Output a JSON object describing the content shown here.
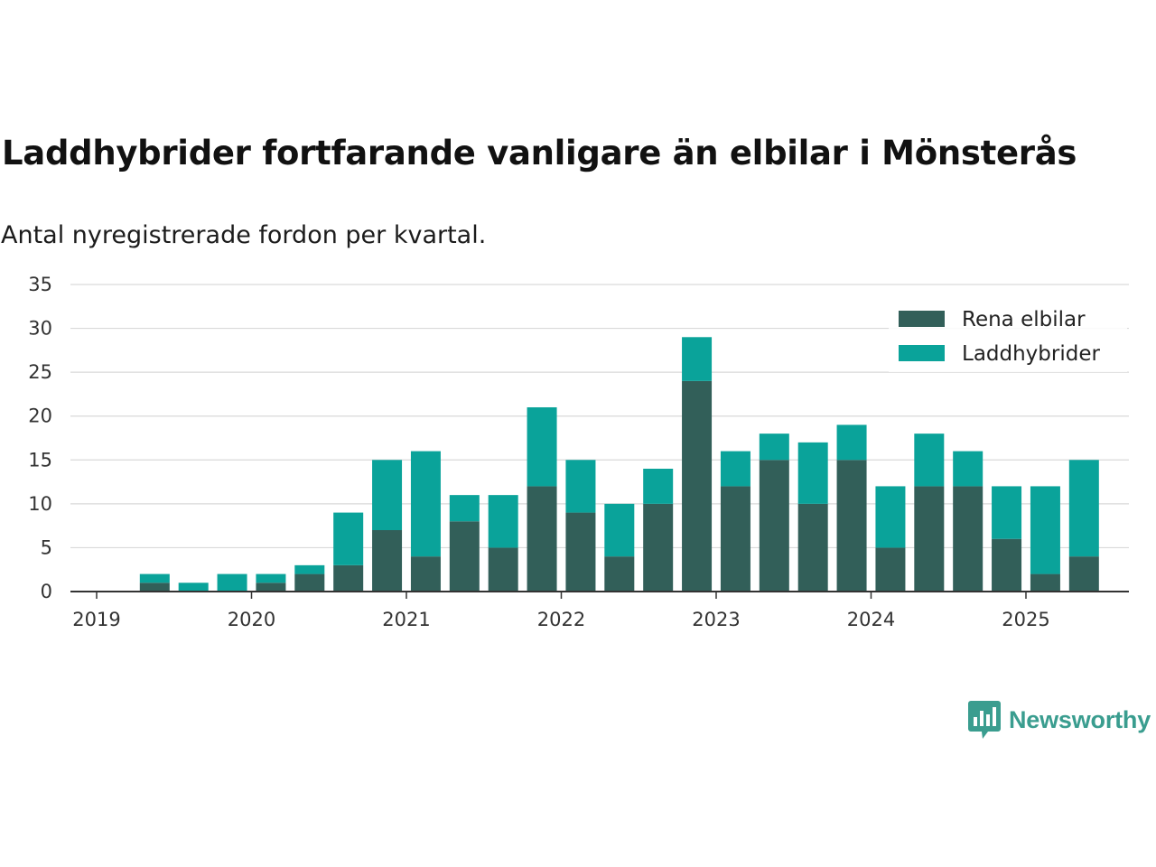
{
  "title": "Laddhybrider fortfarande vanligare än elbilar i Mönsterås",
  "subtitle": "Antal nyregistrerade fordon per kvartal.",
  "brand": {
    "name": "Newsworthy",
    "icon": "newsworthy-bar-chart-logo-icon",
    "color": "#3a9d8f"
  },
  "chart_data": {
    "type": "bar",
    "stacked": true,
    "categories": [
      "2019 Q2",
      "2019 Q3",
      "2019 Q4",
      "2020 Q1",
      "2020 Q2",
      "2020 Q3",
      "2020 Q4",
      "2021 Q1",
      "2021 Q2",
      "2021 Q3",
      "2021 Q4",
      "2022 Q1",
      "2022 Q2",
      "2022 Q3",
      "2022 Q4",
      "2023 Q1",
      "2023 Q2",
      "2023 Q3",
      "2023 Q4",
      "2024 Q1",
      "2024 Q2",
      "2024 Q3",
      "2024 Q4",
      "2025 Q1",
      "2025 Q2"
    ],
    "series": [
      {
        "name": "Rena elbilar",
        "color": "#325f59",
        "values": [
          1,
          0,
          0,
          1,
          2,
          3,
          7,
          4,
          8,
          5,
          12,
          9,
          4,
          10,
          24,
          12,
          15,
          10,
          15,
          5,
          12,
          12,
          6,
          2,
          4
        ]
      },
      {
        "name": "Laddhybrider",
        "color": "#0aa39a",
        "values": [
          1,
          1,
          2,
          1,
          1,
          6,
          8,
          12,
          3,
          6,
          9,
          6,
          6,
          4,
          5,
          4,
          3,
          7,
          4,
          7,
          6,
          4,
          6,
          10,
          11
        ]
      }
    ],
    "x_ticks": [
      "2019",
      "2020",
      "2021",
      "2022",
      "2023",
      "2024",
      "2025"
    ],
    "y_ticks": [
      0,
      5,
      10,
      15,
      20,
      25,
      30,
      35
    ],
    "ylim": [
      0,
      35
    ],
    "grid": true,
    "legend": "top-right",
    "xlabel": "",
    "ylabel": ""
  }
}
